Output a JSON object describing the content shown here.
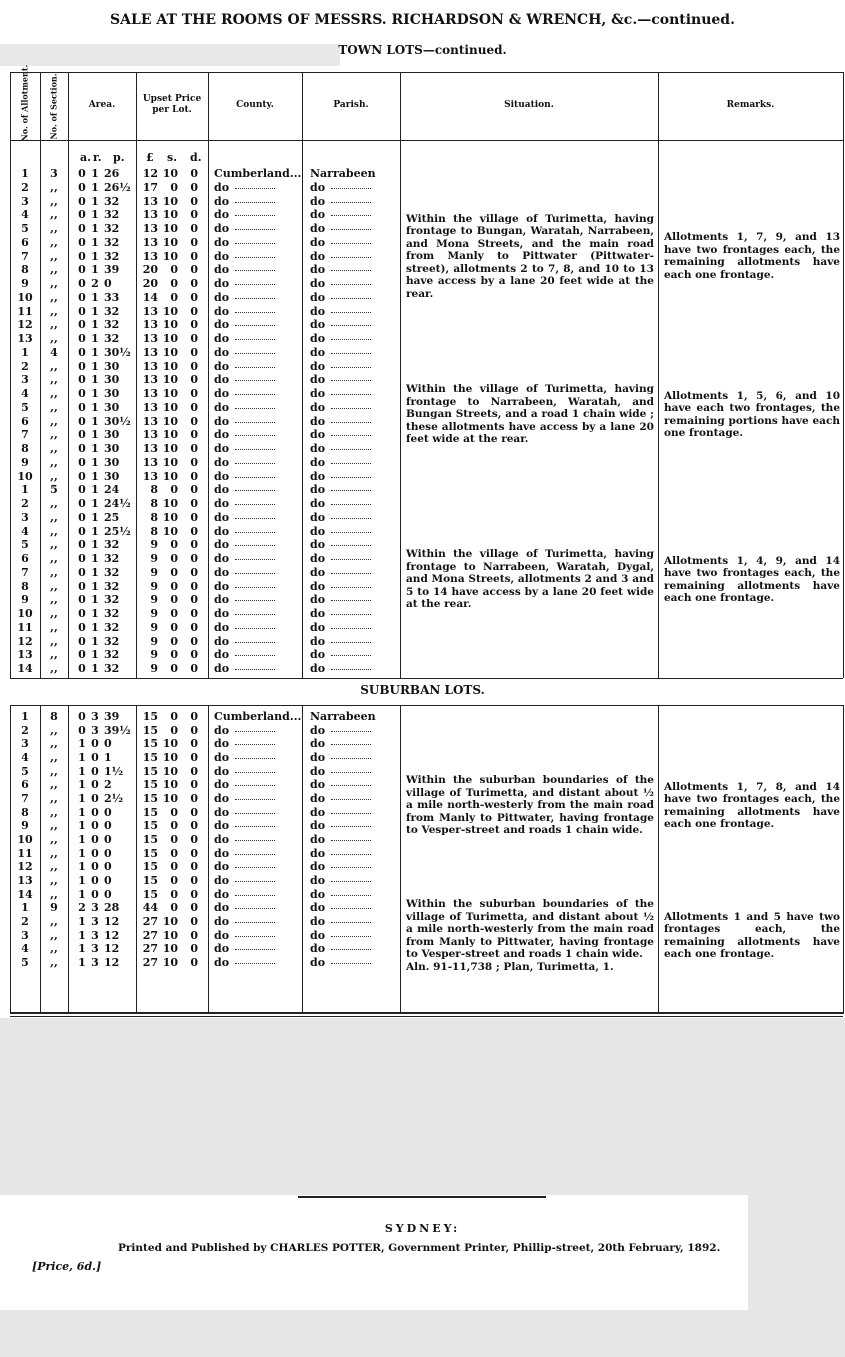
{
  "header": {
    "title": "SALE AT THE ROOMS OF MESSRS. RICHARDSON & WRENCH, &c.—continued.",
    "columns": [
      "No. of Allotment.",
      "No. of Section.",
      "Area.",
      "Upset Price per Lot.",
      "County.",
      "Parish.",
      "Situation.",
      "Remarks."
    ],
    "units": [
      "a.",
      "r.",
      "p.",
      "£",
      "s.",
      "d."
    ]
  },
  "table": {
    "sections": [
      {
        "heading": "TOWN LOTS—continued.",
        "groups": [
          {
            "rows": [
              [
                "1",
                "3",
                "0",
                "1",
                "26",
                "12",
                "10",
                "0",
                "Cumberland...",
                "Narrabeen"
              ],
              [
                "2",
                ",,",
                "0",
                "1",
                "26½",
                "17",
                "0",
                "0",
                "do",
                "do"
              ],
              [
                "3",
                ",,",
                "0",
                "1",
                "32",
                "13",
                "10",
                "0",
                "do",
                "do"
              ],
              [
                "4",
                ",,",
                "0",
                "1",
                "32",
                "13",
                "10",
                "0",
                "do",
                "do"
              ],
              [
                "5",
                ",,",
                "0",
                "1",
                "32",
                "13",
                "10",
                "0",
                "do",
                "do"
              ],
              [
                "6",
                ",,",
                "0",
                "1",
                "32",
                "13",
                "10",
                "0",
                "do",
                "do"
              ],
              [
                "7",
                ",,",
                "0",
                "1",
                "32",
                "13",
                "10",
                "0",
                "do",
                "do"
              ],
              [
                "8",
                ",,",
                "0",
                "1",
                "39",
                "20",
                "0",
                "0",
                "do",
                "do"
              ],
              [
                "9",
                ",,",
                "0",
                "2",
                "0",
                "20",
                "0",
                "0",
                "do",
                "do"
              ],
              [
                "10",
                ",,",
                "0",
                "1",
                "33",
                "14",
                "0",
                "0",
                "do",
                "do"
              ],
              [
                "11",
                ",,",
                "0",
                "1",
                "32",
                "13",
                "10",
                "0",
                "do",
                "do"
              ],
              [
                "12",
                ",,",
                "0",
                "1",
                "32",
                "13",
                "10",
                "0",
                "do",
                "do"
              ],
              [
                "13",
                ",,",
                "0",
                "1",
                "32",
                "13",
                "10",
                "0",
                "do",
                "do"
              ]
            ],
            "situation": "Within the village of Turimetta, having frontage to Bungan, Waratah, Narrabeen, and Mona Streets, and the main road from Manly to Pittwater (Pittwater-street), allotments 2 to 7, 8, and 10 to 13 have access by a lane 20 feet wide at the rear.",
            "remarks": "Allotments 1, 7, 9, and 13 have two frontages each, the remaining allotments have each one frontage."
          },
          {
            "rows": [
              [
                "1",
                "4",
                "0",
                "1",
                "30½",
                "13",
                "10",
                "0",
                "do",
                "do"
              ],
              [
                "2",
                ",,",
                "0",
                "1",
                "30",
                "13",
                "10",
                "0",
                "do",
                "do"
              ],
              [
                "3",
                ",,",
                "0",
                "1",
                "30",
                "13",
                "10",
                "0",
                "do",
                "do"
              ],
              [
                "4",
                ",,",
                "0",
                "1",
                "30",
                "13",
                "10",
                "0",
                "do",
                "do"
              ],
              [
                "5",
                ",,",
                "0",
                "1",
                "30",
                "13",
                "10",
                "0",
                "do",
                "do"
              ],
              [
                "6",
                ",,",
                "0",
                "1",
                "30½",
                "13",
                "10",
                "0",
                "do",
                "do"
              ],
              [
                "7",
                ",,",
                "0",
                "1",
                "30",
                "13",
                "10",
                "0",
                "do",
                "do"
              ],
              [
                "8",
                ",,",
                "0",
                "1",
                "30",
                "13",
                "10",
                "0",
                "do",
                "do"
              ],
              [
                "9",
                ",,",
                "0",
                "1",
                "30",
                "13",
                "10",
                "0",
                "do",
                "do"
              ],
              [
                "10",
                ",,",
                "0",
                "1",
                "30",
                "13",
                "10",
                "0",
                "do",
                "do"
              ]
            ],
            "situation": "Within the village of Turimetta, having frontage to Narrabeen, Waratah, and Bungan Streets, and a road 1 chain wide ; these allotments have access by a lane 20 feet wide at the rear.",
            "remarks": "Allotments 1, 5, 6, and 10 have each two frontages, the remaining portions have each one frontage."
          },
          {
            "rows": [
              [
                "1",
                "5",
                "0",
                "1",
                "24",
                "8",
                "0",
                "0",
                "do",
                "do"
              ],
              [
                "2",
                ",,",
                "0",
                "1",
                "24½",
                "8",
                "10",
                "0",
                "do",
                "do"
              ],
              [
                "3",
                ",,",
                "0",
                "1",
                "25",
                "8",
                "10",
                "0",
                "do",
                "do"
              ],
              [
                "4",
                ",,",
                "0",
                "1",
                "25½",
                "8",
                "10",
                "0",
                "do",
                "do"
              ],
              [
                "5",
                ",,",
                "0",
                "1",
                "32",
                "9",
                "0",
                "0",
                "do",
                "do"
              ],
              [
                "6",
                ",,",
                "0",
                "1",
                "32",
                "9",
                "0",
                "0",
                "do",
                "do"
              ],
              [
                "7",
                ",,",
                "0",
                "1",
                "32",
                "9",
                "0",
                "0",
                "do",
                "do"
              ],
              [
                "8",
                ",,",
                "0",
                "1",
                "32",
                "9",
                "0",
                "0",
                "do",
                "do"
              ],
              [
                "9",
                ",,",
                "0",
                "1",
                "32",
                "9",
                "0",
                "0",
                "do",
                "do"
              ],
              [
                "10",
                ",,",
                "0",
                "1",
                "32",
                "9",
                "0",
                "0",
                "do",
                "do"
              ],
              [
                "11",
                ",,",
                "0",
                "1",
                "32",
                "9",
                "0",
                "0",
                "do",
                "do"
              ],
              [
                "12",
                ",,",
                "0",
                "1",
                "32",
                "9",
                "0",
                "0",
                "do",
                "do"
              ],
              [
                "13",
                ",,",
                "0",
                "1",
                "32",
                "9",
                "0",
                "0",
                "do",
                "do"
              ],
              [
                "14",
                ",,",
                "0",
                "1",
                "32",
                "9",
                "0",
                "0",
                "do",
                "do"
              ]
            ],
            "situation": "Within the village of Turimetta, having frontage to Narrabeen, Waratah, Dygal, and Mona Streets, allotments 2 and 3 and 5 to 14 have access by a lane 20 feet wide at the rear.",
            "remarks": "Allotments 1, 4, 9, and 14 have two frontages each, the remaining allotments have each one frontage."
          }
        ]
      },
      {
        "heading": "SUBURBAN LOTS.",
        "groups": [
          {
            "rows": [
              [
                "1",
                "8",
                "0",
                "3",
                "39",
                "15",
                "0",
                "0",
                "Cumberland...",
                "Narrabeen"
              ],
              [
                "2",
                ",,",
                "0",
                "3",
                "39½",
                "15",
                "0",
                "0",
                "do",
                "do"
              ],
              [
                "3",
                ",,",
                "1",
                "0",
                "0",
                "15",
                "10",
                "0",
                "do",
                "do"
              ],
              [
                "4",
                ",,",
                "1",
                "0",
                "1",
                "15",
                "10",
                "0",
                "do",
                "do"
              ],
              [
                "5",
                ",,",
                "1",
                "0",
                "1½",
                "15",
                "10",
                "0",
                "do",
                "do"
              ],
              [
                "6",
                ",,",
                "1",
                "0",
                "2",
                "15",
                "10",
                "0",
                "do",
                "do"
              ],
              [
                "7",
                ",,",
                "1",
                "0",
                "2½",
                "15",
                "10",
                "0",
                "do",
                "do"
              ],
              [
                "8",
                ",,",
                "1",
                "0",
                "0",
                "15",
                "0",
                "0",
                "do",
                "do"
              ],
              [
                "9",
                ",,",
                "1",
                "0",
                "0",
                "15",
                "0",
                "0",
                "do",
                "do"
              ],
              [
                "10",
                ",,",
                "1",
                "0",
                "0",
                "15",
                "0",
                "0",
                "do",
                "do"
              ],
              [
                "11",
                ",,",
                "1",
                "0",
                "0",
                "15",
                "0",
                "0",
                "do",
                "do"
              ],
              [
                "12",
                ",,",
                "1",
                "0",
                "0",
                "15",
                "0",
                "0",
                "do",
                "do"
              ],
              [
                "13",
                ",,",
                "1",
                "0",
                "0",
                "15",
                "0",
                "0",
                "do",
                "do"
              ],
              [
                "14",
                ",,",
                "1",
                "0",
                "0",
                "15",
                "0",
                "0",
                "do",
                "do"
              ]
            ],
            "situation": "Within the suburban boundaries of the village of Turimetta, and distant about ½ a mile north-westerly from the main road from Manly to Pittwater, having frontage to Vesper-street and roads 1 chain wide.",
            "remarks": "Allotments 1, 7, 8, and 14 have two frontages each, the remaining allotments have each one frontage."
          },
          {
            "rows": [
              [
                "1",
                "9",
                "2",
                "3",
                "28",
                "44",
                "0",
                "0",
                "do",
                "do"
              ],
              [
                "2",
                ",,",
                "1",
                "3",
                "12",
                "27",
                "10",
                "0",
                "do",
                "do"
              ],
              [
                "3",
                ",,",
                "1",
                "3",
                "12",
                "27",
                "10",
                "0",
                "do",
                "do"
              ],
              [
                "4",
                ",,",
                "1",
                "3",
                "12",
                "27",
                "10",
                "0",
                "do",
                "do"
              ],
              [
                "5",
                ",,",
                "1",
                "3",
                "12",
                "27",
                "10",
                "0",
                "do",
                "do"
              ]
            ],
            "situation": "Within the suburban boundaries of the village of Turimetta, and distant about ½ a mile north-westerly from the main road from Manly to Pittwater, having frontage to Vesper-street and roads 1 chain wide.",
            "note": "Aln. 91-11,738 ; Plan, Turimetta, 1.",
            "remarks": "Allotments 1 and 5 have two frontages each, the remaining allotments have each one frontage."
          }
        ]
      }
    ]
  },
  "footer": {
    "place": "SYDNEY:",
    "imprint": "Printed and Published by CHARLES POTTER, Government Printer, Phillip-street, 20th February, 1892.",
    "price": "[Price, 6d.]"
  }
}
